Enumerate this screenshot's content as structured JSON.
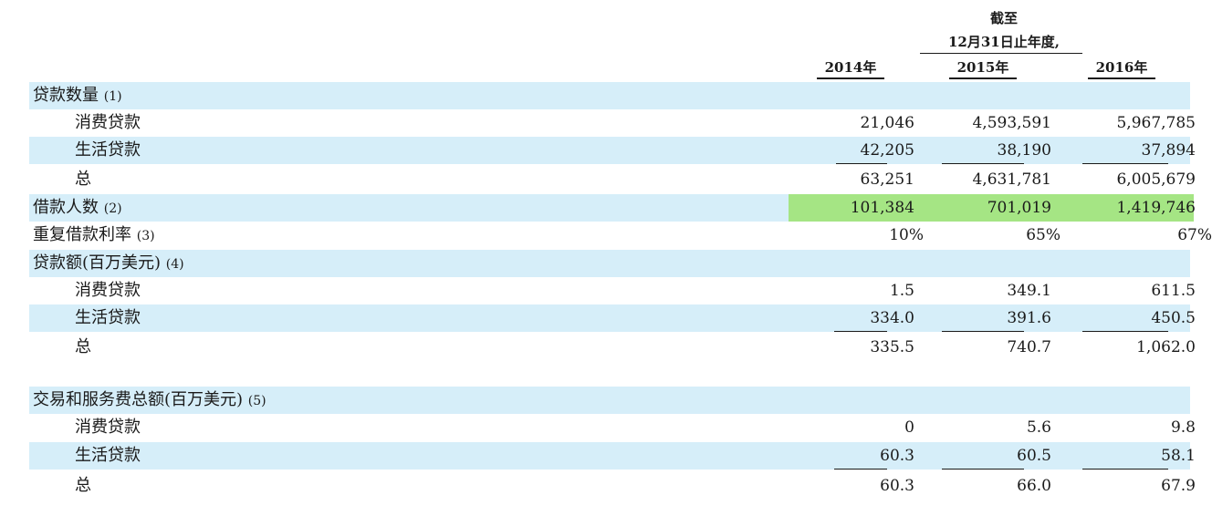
{
  "header": {
    "line1": "截至",
    "line2": "12月31日止年度,",
    "years": [
      "2014年",
      "2015年",
      "2016年"
    ]
  },
  "rows": [
    {
      "label": "贷款数量",
      "note": "(1)",
      "values": [
        "",
        "",
        ""
      ]
    },
    {
      "label": "消费贷款",
      "note": "",
      "values": [
        "21,046",
        "4,593,591",
        "5,967,785"
      ]
    },
    {
      "label": "生活贷款",
      "note": "",
      "values": [
        "42,205",
        "38,190",
        "37,894"
      ]
    },
    {
      "label": "总",
      "note": "",
      "values": [
        "63,251",
        "4,631,781",
        "6,005,679"
      ]
    },
    {
      "label": "借款人数",
      "note": "(2)",
      "values": [
        "101,384",
        "701,019",
        "1,419,746"
      ]
    },
    {
      "label": "重复借款利率",
      "note": "(3)",
      "values": [
        "10%",
        "65%",
        "67%"
      ]
    },
    {
      "label": "贷款额(百万美元)",
      "note": "(4)",
      "values": [
        "",
        "",
        ""
      ]
    },
    {
      "label": "消费贷款",
      "note": "",
      "values": [
        "1.5",
        "349.1",
        "611.5"
      ]
    },
    {
      "label": "生活贷款",
      "note": "",
      "values": [
        "334.0",
        "391.6",
        "450.5"
      ]
    },
    {
      "label": "总",
      "note": "",
      "values": [
        "335.5",
        "740.7",
        "1,062.0"
      ]
    },
    {
      "label": "交易和服务费总额(百万美元)",
      "note": "(5)",
      "values": [
        "",
        "",
        ""
      ]
    },
    {
      "label": "消费贷款",
      "note": "",
      "values": [
        "0",
        "5.6",
        "9.8"
      ]
    },
    {
      "label": "生活贷款",
      "note": "",
      "values": [
        "60.3",
        "60.5",
        "58.1"
      ]
    },
    {
      "label": "总",
      "note": "",
      "values": [
        "60.3",
        "66.0",
        "67.9"
      ]
    }
  ],
  "colors": {
    "row_shade": "#d6eef9",
    "highlight": "#a5e584"
  }
}
